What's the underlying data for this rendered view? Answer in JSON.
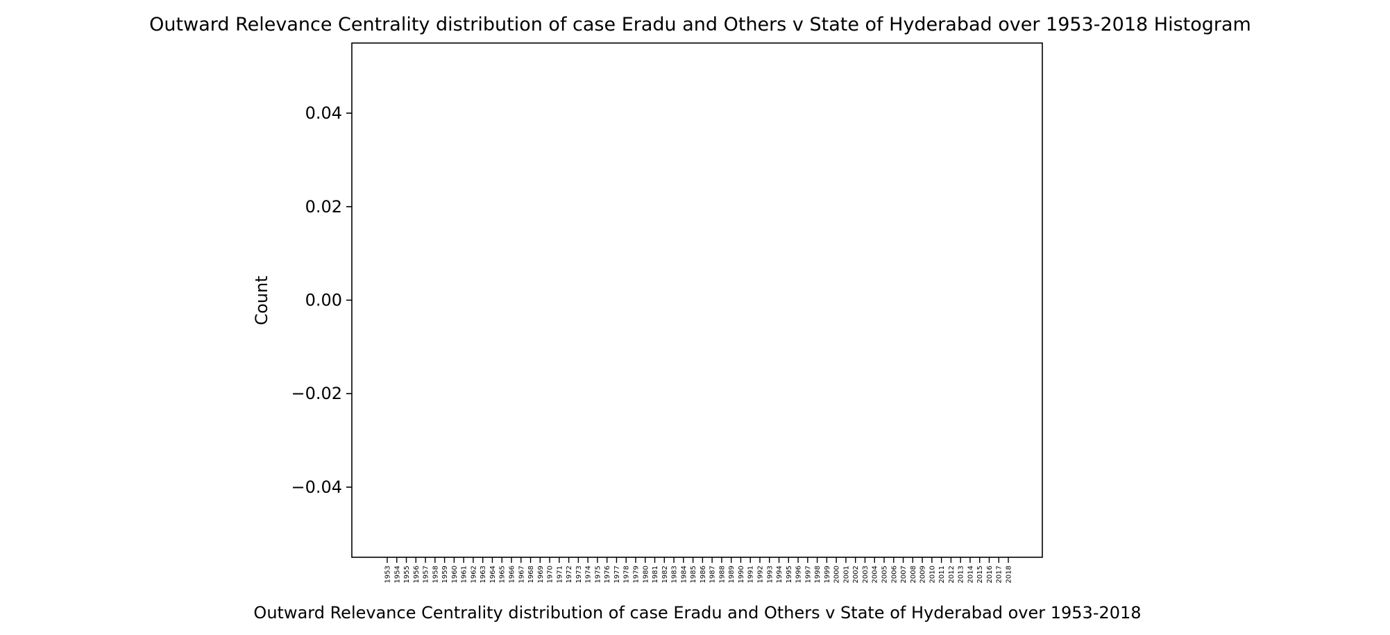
{
  "chart_data": {
    "type": "bar",
    "title": "Outward Relevance Centrality distribution of case Eradu and Others v State of Hyderabad over 1953-2018 Histogram",
    "xlabel": "Outward Relevance Centrality distribution of case Eradu and Others v State of Hyderabad over 1953-2018",
    "ylabel": "Count",
    "categories": [
      "1953",
      "1954",
      "1955",
      "1956",
      "1957",
      "1958",
      "1959",
      "1960",
      "1961",
      "1962",
      "1963",
      "1964",
      "1965",
      "1966",
      "1967",
      "1968",
      "1969",
      "1970",
      "1971",
      "1972",
      "1973",
      "1974",
      "1975",
      "1976",
      "1977",
      "1978",
      "1979",
      "1980",
      "1981",
      "1982",
      "1983",
      "1984",
      "1985",
      "1986",
      "1987",
      "1988",
      "1989",
      "1990",
      "1991",
      "1992",
      "1993",
      "1994",
      "1995",
      "1996",
      "1997",
      "1998",
      "1999",
      "2000",
      "2001",
      "2002",
      "2003",
      "2004",
      "2005",
      "2006",
      "2007",
      "2008",
      "2009",
      "2010",
      "2011",
      "2012",
      "2013",
      "2014",
      "2015",
      "2016",
      "2017",
      "2018"
    ],
    "values": [
      0,
      0,
      0,
      0,
      0,
      0,
      0,
      0,
      0,
      0,
      0,
      0,
      0,
      0,
      0,
      0,
      0,
      0,
      0,
      0,
      0,
      0,
      0,
      0,
      0,
      0,
      0,
      0,
      0,
      0,
      0,
      0,
      0,
      0,
      0,
      0,
      0,
      0,
      0,
      0,
      0,
      0,
      0,
      0,
      0,
      0,
      0,
      0,
      0,
      0,
      0,
      0,
      0,
      0,
      0,
      0,
      0,
      0,
      0,
      0,
      0,
      0,
      0,
      0,
      0,
      0
    ],
    "ylim": [
      -0.055,
      0.055
    ],
    "yticks": [
      "0.04",
      "0.02",
      "0.00",
      "−0.02",
      "−0.04"
    ],
    "ytick_values": [
      0.04,
      0.02,
      0.0,
      -0.02,
      -0.04
    ],
    "grid": false,
    "legend": "none"
  }
}
